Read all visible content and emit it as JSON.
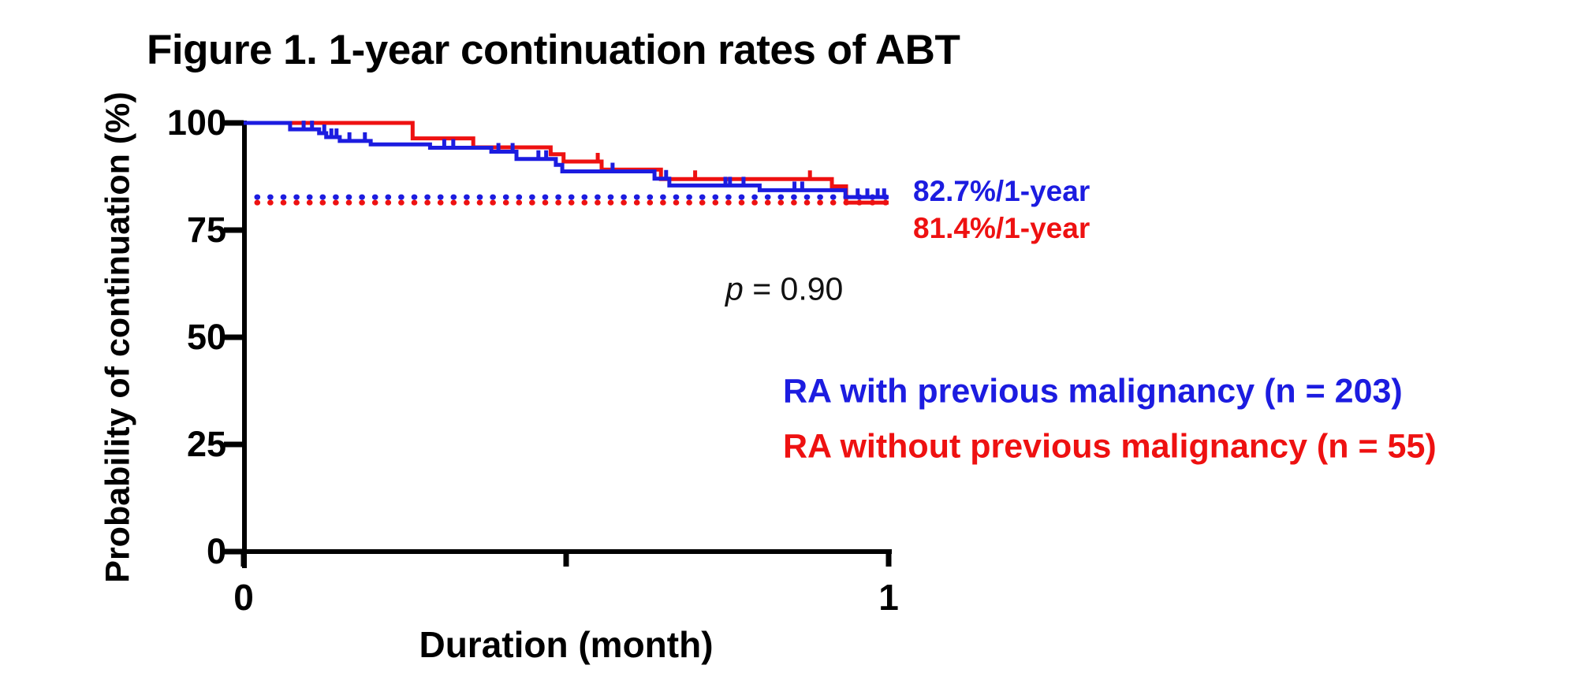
{
  "figure": {
    "background_color": "#ffffff",
    "text_color": "#000000"
  },
  "chart_data": {
    "type": "line",
    "subtype": "kaplan-meier-step-curve",
    "title": "Figure 1. 1-year continuation rates of ABT",
    "xlabel": "Duration (month)",
    "ylabel": "Probability of continuation (%)",
    "xlim": [
      0,
      1
    ],
    "ylim": [
      0,
      100
    ],
    "grid": false,
    "xticks": [
      "0",
      "1"
    ],
    "xtick_values": [
      0,
      1
    ],
    "xtick_marks": [
      0,
      0.5,
      1
    ],
    "yticks": [
      "100",
      "75",
      "50",
      "25",
      "0"
    ],
    "ytick_values": [
      100,
      75,
      50,
      25,
      0
    ],
    "series": [
      {
        "name": "RA with previous malignancy (n = 203)",
        "color": "#1c1ce0",
        "n": 203,
        "final_rate_pct": 82.7,
        "steps": [
          [
            0,
            100
          ],
          [
            0.072,
            98.5
          ],
          [
            0.117,
            97.6
          ],
          [
            0.128,
            96.7
          ],
          [
            0.149,
            95.8
          ],
          [
            0.197,
            95.0
          ],
          [
            0.289,
            94.2
          ],
          [
            0.384,
            93.3
          ],
          [
            0.423,
            91.6
          ],
          [
            0.484,
            90.2
          ],
          [
            0.494,
            88.7
          ],
          [
            0.637,
            87.0
          ],
          [
            0.66,
            85.4
          ],
          [
            0.8,
            84.3
          ],
          [
            0.933,
            82.7
          ],
          [
            1.0,
            82.7
          ]
        ],
        "censor_marks": [
          [
            0.093,
            98.5
          ],
          [
            0.106,
            98.5
          ],
          [
            0.125,
            97.6
          ],
          [
            0.136,
            96.7
          ],
          [
            0.144,
            96.7
          ],
          [
            0.164,
            95.8
          ],
          [
            0.188,
            95.8
          ],
          [
            0.311,
            94.2
          ],
          [
            0.325,
            94.2
          ],
          [
            0.395,
            93.3
          ],
          [
            0.417,
            93.3
          ],
          [
            0.457,
            91.6
          ],
          [
            0.469,
            91.6
          ],
          [
            0.572,
            88.7
          ],
          [
            0.655,
            87.0
          ],
          [
            0.747,
            85.4
          ],
          [
            0.754,
            85.4
          ],
          [
            0.775,
            85.4
          ],
          [
            0.854,
            84.3
          ],
          [
            0.866,
            84.3
          ],
          [
            0.952,
            82.7
          ],
          [
            0.967,
            82.7
          ],
          [
            0.983,
            82.7
          ],
          [
            0.993,
            82.7
          ]
        ]
      },
      {
        "name": "RA without previous malignancy (n = 55)",
        "color": "#ee1111",
        "n": 55,
        "final_rate_pct": 81.4,
        "steps": [
          [
            0,
            100
          ],
          [
            0.262,
            96.4
          ],
          [
            0.356,
            94.3
          ],
          [
            0.476,
            92.7
          ],
          [
            0.496,
            91.0
          ],
          [
            0.555,
            89.1
          ],
          [
            0.647,
            86.9
          ],
          [
            0.912,
            85.2
          ],
          [
            0.934,
            81.4
          ],
          [
            1.0,
            81.4
          ]
        ],
        "censor_marks": [
          [
            0.549,
            91.0
          ],
          [
            0.7,
            86.9
          ],
          [
            0.878,
            86.9
          ]
        ]
      }
    ],
    "reference_lines": [
      {
        "pct": 82.7,
        "style": "dotted",
        "color": "#1c1ce0"
      },
      {
        "pct": 81.4,
        "style": "dotted",
        "color": "#ee1111"
      }
    ],
    "annotations": {
      "blue_rate_label": "82.7%/1-year",
      "red_rate_label": "81.4%/1-year",
      "p_italic": "p",
      "p_rest": " = 0.90"
    }
  }
}
